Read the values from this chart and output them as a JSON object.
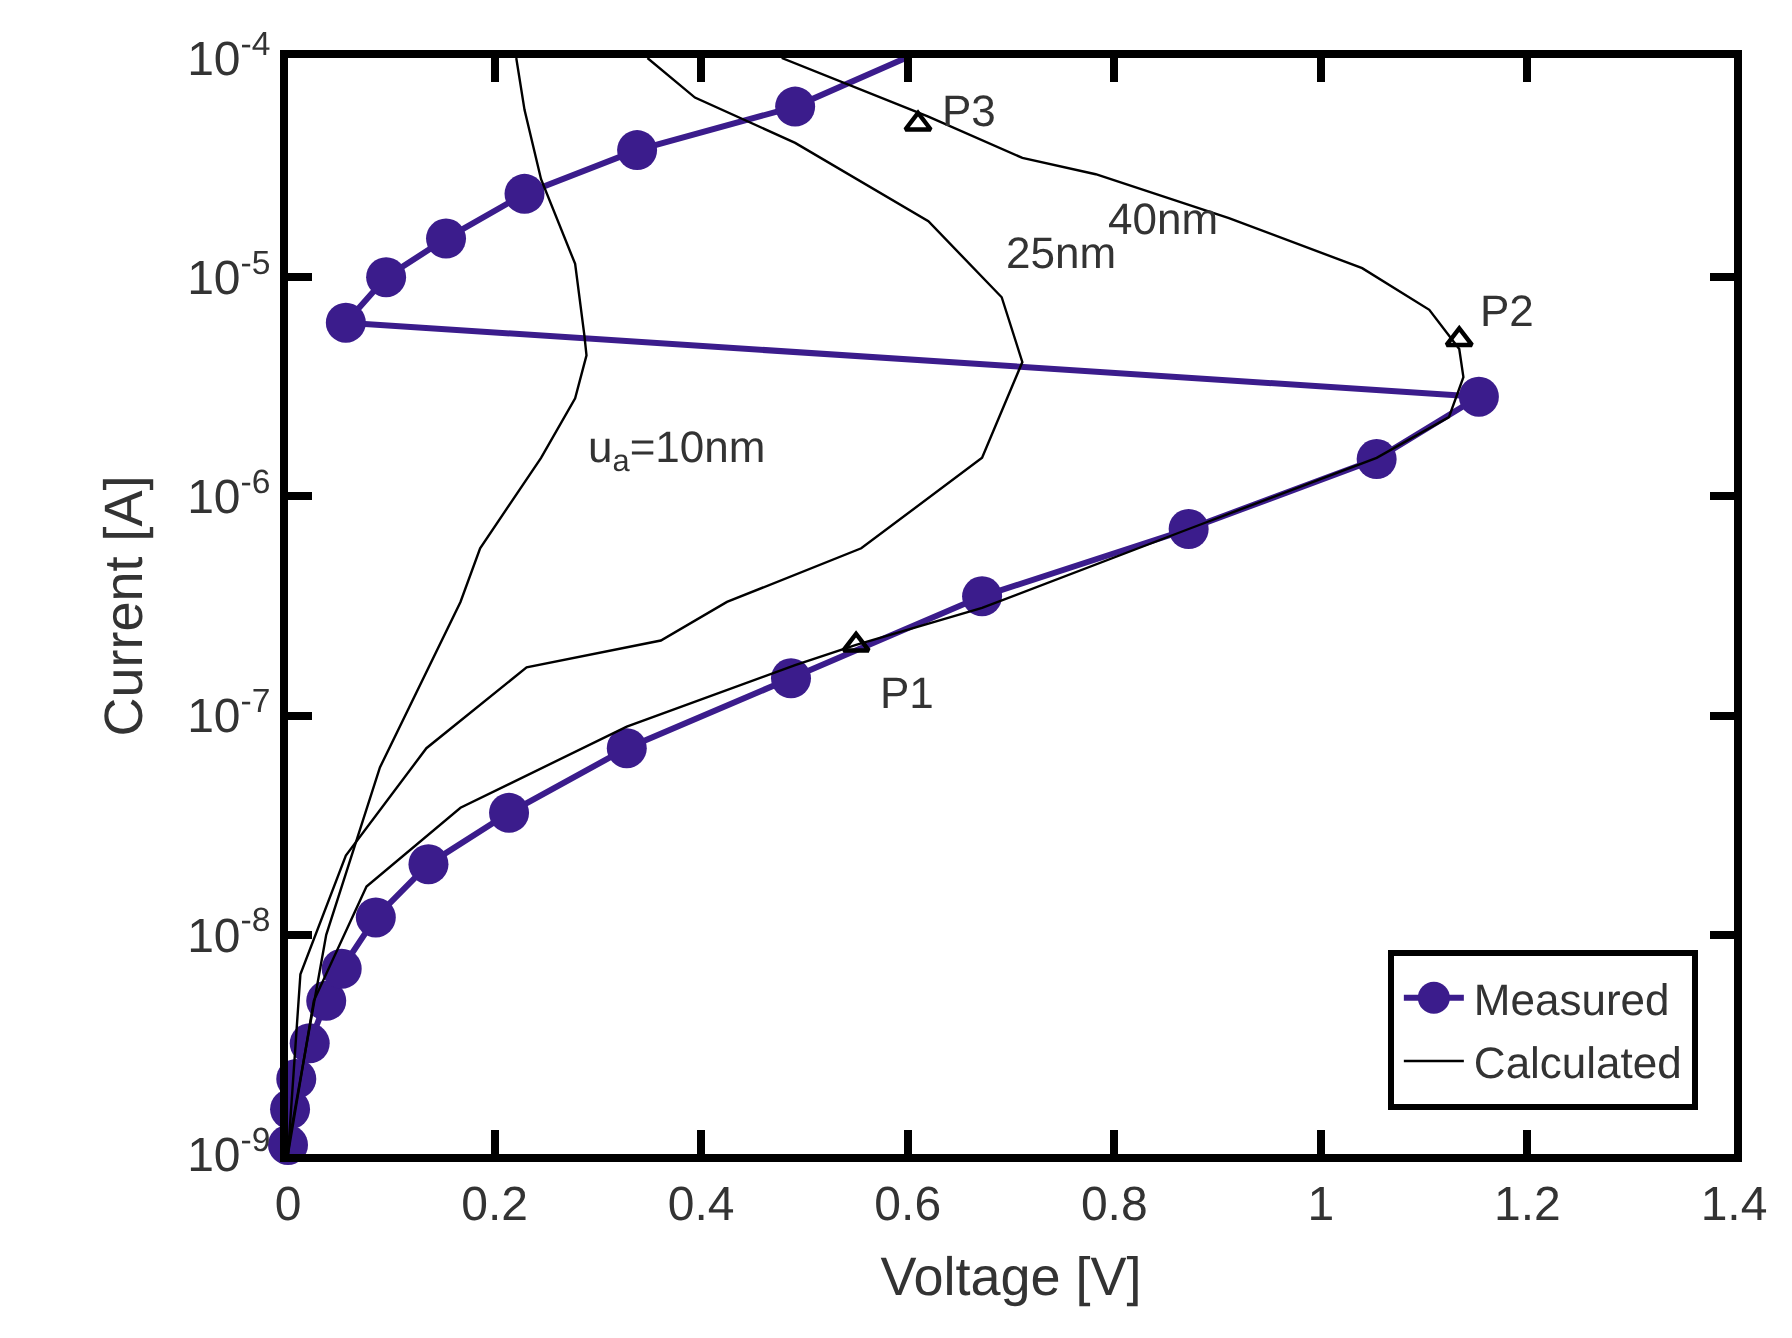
{
  "chart_data": {
    "type": "line",
    "xlabel": "Voltage [V]",
    "ylabel": "Current [A]",
    "log": "y",
    "legend": "bottom right",
    "xlim": [
      0,
      1.4
    ],
    "xticks": [
      0,
      0.2,
      0.4,
      0.6,
      0.8,
      1,
      1.2,
      1.4
    ],
    "ylim": [
      1e-09,
      0.0001
    ],
    "yticks": [
      {
        "value": 1e-09,
        "label": "10$^{-9}$"
      },
      {
        "value": 1e-08,
        "label": "10$^{-8}$"
      },
      {
        "value": 1e-07,
        "label": "10$^{-7}$"
      },
      {
        "value": 1e-06,
        "label": "10$^{-6}$"
      },
      {
        "value": 1e-05,
        "label": "10$^{-5}$"
      },
      {
        "value": 0.0001,
        "label": "10$^{-4}$"
      }
    ],
    "series": [
      {
        "name": "Measured",
        "color": "#3b1c8c",
        "marker": "circle",
        "line_style": "solid",
        "x": [
          0,
          0.002,
          0.008,
          0.021,
          0.037,
          0.052,
          0.085,
          0.136,
          0.214,
          0.328,
          0.487,
          0.672,
          0.872,
          1.054,
          1.153,
          0.056,
          0.095,
          0.153,
          0.229,
          0.338,
          0.491,
          0.598
        ],
        "values": [
          1.1e-09,
          1.6e-09,
          2.2e-09,
          3.2e-09,
          5e-09,
          7e-09,
          1.2e-08,
          2.1e-08,
          3.6e-08,
          7.1e-08,
          1.48e-07,
          3.5e-07,
          7.1e-07,
          1.48e-06,
          2.85e-06,
          6.2e-06,
          1e-05,
          1.5e-05,
          2.4e-05,
          3.8e-05,
          6e-05,
          0.0001
        ]
      },
      {
        "name": "Calculated",
        "color": "#000000",
        "marker": "none",
        "line_style": "solid",
        "x": [
          0,
          0.002,
          0.037,
          0.089,
          0.167,
          0.186,
          0.245,
          0.278,
          0.289,
          0.287,
          0.278,
          0.245,
          0.229,
          0.221
        ],
        "values": [
          1e-09,
          1.2e-09,
          1e-08,
          5.8e-08,
          3.3e-07,
          5.8e-07,
          1.5e-06,
          2.8e-06,
          4.4e-06,
          5.4e-06,
          1.15e-05,
          2.8e-05,
          5.8e-05,
          0.0001
        ]
      },
      {
        "color": "#000000",
        "marker": "none",
        "line_style": "solid",
        "x": [
          0,
          0.012,
          0.056,
          0.134,
          0.231,
          0.361,
          0.425,
          0.555,
          0.672,
          0.711,
          0.691,
          0.62,
          0.491,
          0.394,
          0.348
        ],
        "values": [
          1e-09,
          6.6e-09,
          2.3e-08,
          7.1e-08,
          1.66e-07,
          2.2e-07,
          3.3e-07,
          5.8e-07,
          1.5e-06,
          4.1e-06,
          8.1e-06,
          1.8e-05,
          4.1e-05,
          6.6e-05,
          0.0001
        ]
      },
      {
        "color": "#000000",
        "marker": "none",
        "line_style": "solid",
        "x": [
          0,
          0.025,
          0.076,
          0.167,
          0.328,
          0.491,
          0.55,
          0.672,
          0.872,
          1.054,
          1.124,
          1.138,
          1.134,
          1.105,
          1.04,
          0.911,
          0.782,
          0.711,
          0.62,
          0.478
        ],
        "values": [
          1e-09,
          5e-09,
          1.66e-08,
          3.8e-08,
          8.9e-08,
          1.7e-07,
          2.1e-07,
          3.1e-07,
          7.1e-07,
          1.5e-06,
          2.3e-06,
          3.5e-06,
          4.7e-06,
          7.1e-06,
          1.1e-05,
          1.86e-05,
          2.95e-05,
          3.5e-05,
          5.4e-05,
          0.0001
        ]
      },
      {
        "type": "scatter",
        "color": "#000000",
        "marker": "triangle",
        "x": [
          0.55,
          1.134,
          0.61
        ],
        "values": [
          2.1e-07,
          5.2e-06,
          5e-05
        ]
      }
    ],
    "annotations": [
      {
        "text": "P1",
        "x": 0.55,
        "y": 2.1e-07
      },
      {
        "text": "P2",
        "x": 1.134,
        "y": 5.2e-06
      },
      {
        "text": "P3",
        "x": 0.61,
        "y": 5e-05
      },
      {
        "text": "u$_{a}$=10nm",
        "x": 0.278,
        "y": 2.8e-06
      },
      {
        "text": "25nm",
        "x": 0.691,
        "y": 8.1e-06
      },
      {
        "text": "40nm",
        "x": 0.782,
        "y": 2.95e-05
      }
    ]
  }
}
